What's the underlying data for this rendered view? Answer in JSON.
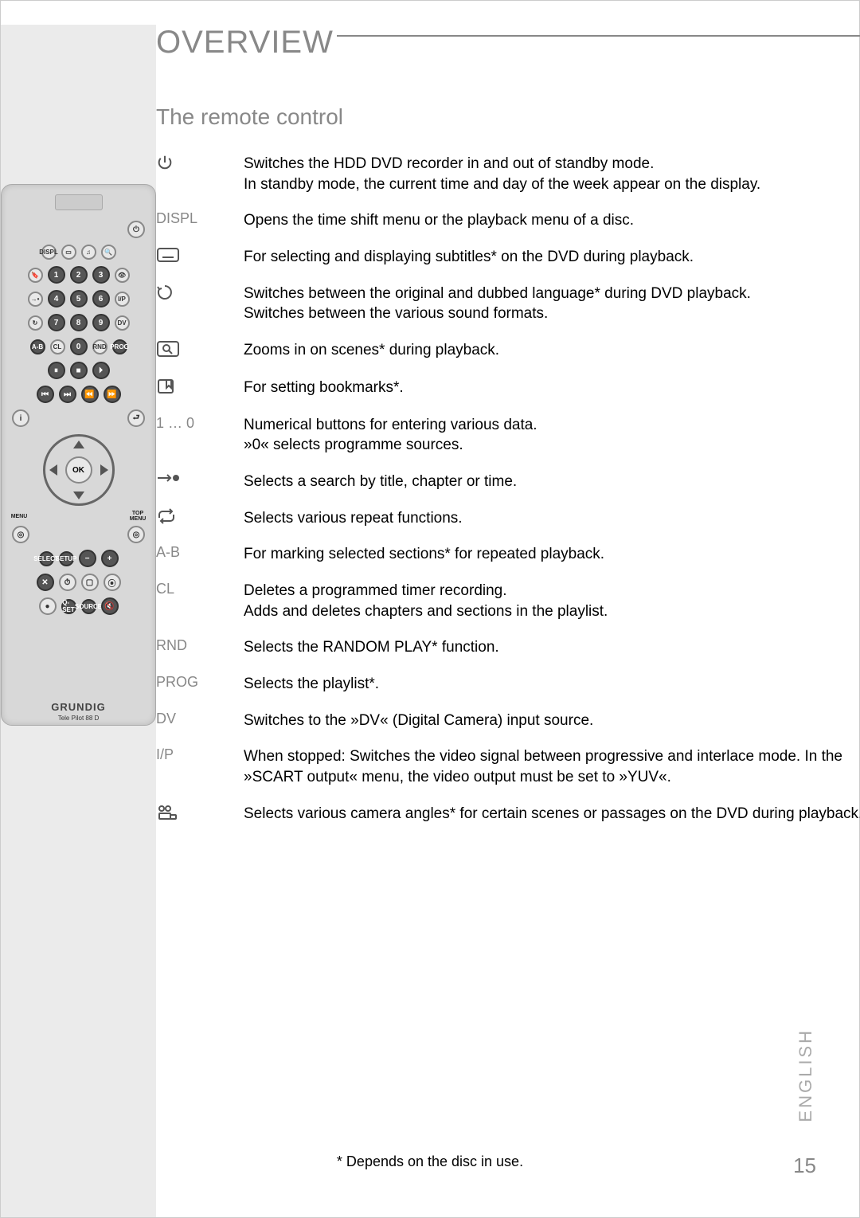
{
  "title": "OVERVIEW",
  "subtitle": "The remote control",
  "colors": {
    "heading": "#888888",
    "body_text": "#000000",
    "label_text": "#888888",
    "left_col_bg": "#ebebeb",
    "page_bg": "#ffffff",
    "remote_bg": "#d8d8d8"
  },
  "fonts": {
    "title_size_pt": 30,
    "subtitle_size_pt": 21,
    "body_size_pt": 14,
    "label_size_pt": 13
  },
  "remote": {
    "brand": "GRUNDIG",
    "model": "Tele Pilot 88 D"
  },
  "functions": [
    {
      "label_type": "icon",
      "icon": "power",
      "desc": "Switches the HDD DVD recorder in and out of standby mode.\nIn standby mode, the current time and day of the week appear on the display."
    },
    {
      "label_type": "text",
      "label": "DISPL",
      "desc": "Opens the time shift menu or the playback menu of a disc."
    },
    {
      "label_type": "icon",
      "icon": "subtitle",
      "desc": "For selecting and displaying subtitles* on the DVD during playback."
    },
    {
      "label_type": "icon",
      "icon": "audio",
      "desc": "Switches between the original and dubbed language* during DVD playback.\nSwitches between the various sound formats."
    },
    {
      "label_type": "icon",
      "icon": "zoom",
      "desc": "Zooms in on scenes* during playback."
    },
    {
      "label_type": "icon",
      "icon": "bookmark",
      "desc": "For setting bookmarks*."
    },
    {
      "label_type": "text",
      "label": "1 … 0",
      "desc": "Numerical buttons for entering various data.\n»0« selects programme sources."
    },
    {
      "label_type": "icon",
      "icon": "goto",
      "desc": "Selects a search by title, chapter or time."
    },
    {
      "label_type": "icon",
      "icon": "repeat",
      "desc": "Selects various repeat functions."
    },
    {
      "label_type": "text",
      "label": "A-B",
      "desc": "For marking selected sections* for repeated playback."
    },
    {
      "label_type": "text",
      "label": "CL",
      "desc": "Deletes a programmed timer recording.\nAdds and deletes chapters and sections in the playlist."
    },
    {
      "label_type": "text",
      "label": "RND",
      "desc": "Selects the RANDOM PLAY* function."
    },
    {
      "label_type": "text",
      "label": "PROG",
      "desc": "Selects the playlist*."
    },
    {
      "label_type": "text",
      "label": "DV",
      "desc": "Switches to the »DV« (Digital Camera) input source."
    },
    {
      "label_type": "text",
      "label": "I/P",
      "desc": "When stopped: Switches the video signal between progressive and interlace mode. In the »SCART output« menu, the video output must be set to »YUV«."
    },
    {
      "label_type": "icon",
      "icon": "angle",
      "desc": "Selects various camera angles* for certain scenes or passages on the DVD during playback."
    }
  ],
  "footnote": "* Depends on the disc in use.",
  "language_tag": "ENGLISH",
  "page_number": "15"
}
